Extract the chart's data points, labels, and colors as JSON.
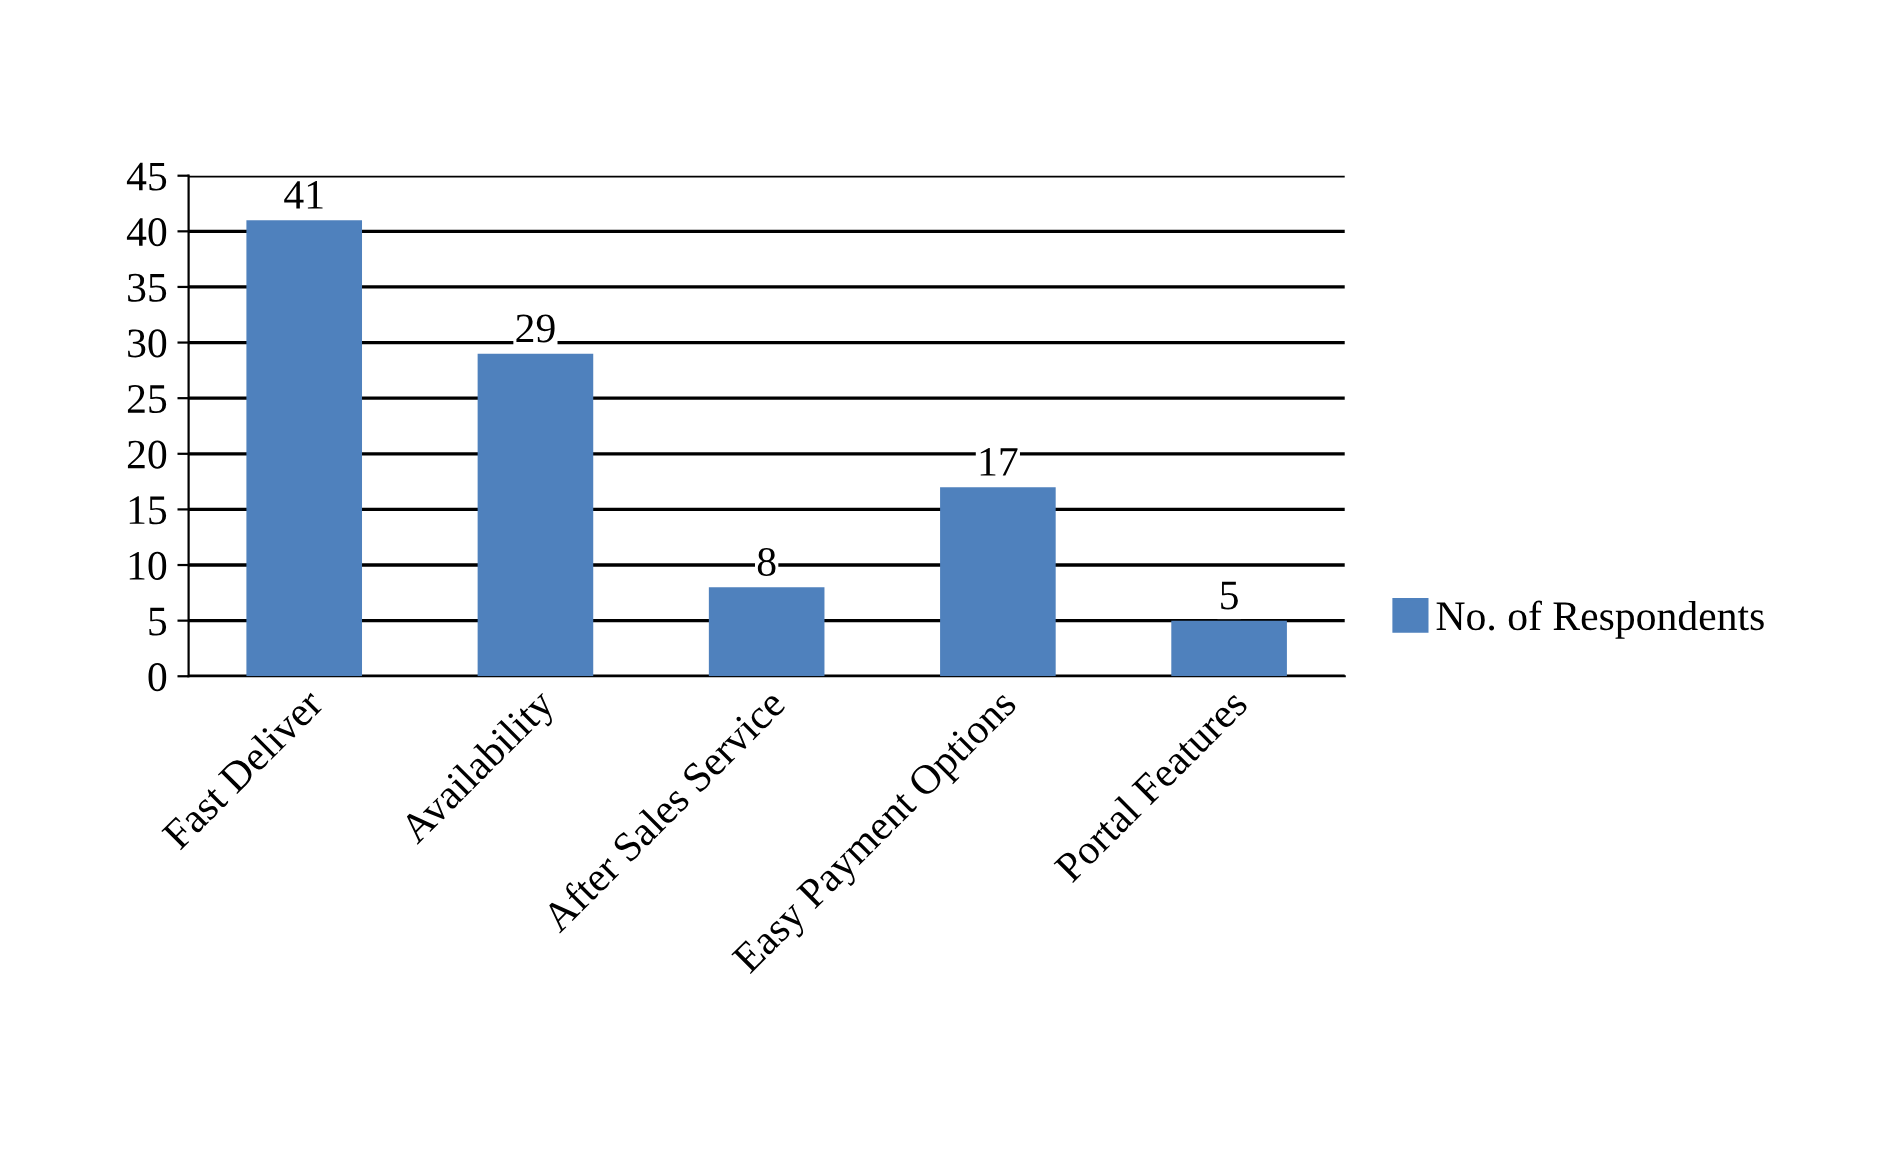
{
  "chart_data": {
    "type": "bar",
    "categories": [
      "Fast Deliver",
      "Availability",
      "After Sales Service",
      "Easy Payment Options",
      "Portal Features"
    ],
    "series": [
      {
        "name": "No. of Respondents",
        "color": "#4f81bd",
        "values": [
          41,
          29,
          8,
          17,
          5
        ]
      }
    ],
    "ylim": [
      0,
      45
    ],
    "yticks": [
      0,
      5,
      10,
      15,
      20,
      25,
      30,
      35,
      40,
      45
    ],
    "grid": "y",
    "legend": "right",
    "data_labels": true
  }
}
